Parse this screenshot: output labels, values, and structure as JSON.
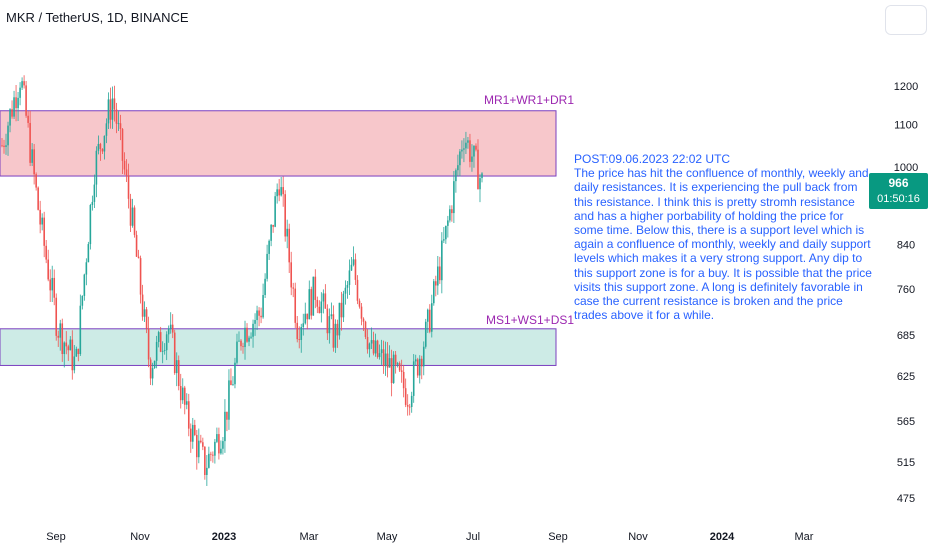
{
  "header": {
    "symbol": "MKR / TetherUS, 1D, BINANCE"
  },
  "colors": {
    "up": "#26a69a",
    "down": "#ef5350",
    "resistance_fill": "#f7c7cb",
    "support_fill": "#cdebe6",
    "zone_border": "#7b3fbf",
    "annotation_text": "#2962ff",
    "price_tag": "#089981",
    "axis_text": "#131722"
  },
  "price_tag": {
    "price": "966",
    "countdown": "01:50:16"
  },
  "annotation": "POST:09.06.2023 22:02 UTC\nThe price has hit the confluence of monthly, weekly and daily resistances. It is experiencing the pull back from this resistance. I think this is pretty stromh resistance and has a higher porbability of holding the price for some time. Below this, there is a support level which is again a confluence of monthly, weekly and daily support levels which makes it a very strong support. Any dip to this support zone is for a buy. It is possible that the price visits this support zone. A long is definitely favorable in case the current resistance is broken and the price trades above it for a while.",
  "chart_data": {
    "type": "candlestick",
    "y_scale": "log",
    "y_ticks": [
      475,
      515,
      565,
      625,
      685,
      760,
      840,
      1000,
      1100,
      1200
    ],
    "x_ticks": [
      "Sep",
      "Nov",
      "2023",
      "Mar",
      "May",
      "Jul",
      "Sep",
      "Nov",
      "2024",
      "Mar"
    ],
    "resistance_zone": {
      "label": "MR1+WR1+DR1",
      "low": 980,
      "high": 1135
    },
    "support_zone": {
      "label": "MS1+WS1+DS1",
      "low": 640,
      "high": 695
    },
    "last_price": 966,
    "series": [
      {
        "date": "Aug",
        "close": 1050
      },
      {
        "date": "mid-Aug",
        "close": 1230
      },
      {
        "date": "late-Aug",
        "close": 900
      },
      {
        "date": "Sep",
        "close": 700
      },
      {
        "date": "mid-Sep",
        "close": 640
      },
      {
        "date": "early-Oct",
        "close": 1000
      },
      {
        "date": "Oct",
        "close": 1170
      },
      {
        "date": "late-Oct",
        "close": 900
      },
      {
        "date": "Nov",
        "close": 640
      },
      {
        "date": "mid-Nov",
        "close": 700
      },
      {
        "date": "Dec",
        "close": 570
      },
      {
        "date": "late-Dec",
        "close": 510
      },
      {
        "date": "2023",
        "close": 560
      },
      {
        "date": "Jan",
        "close": 690
      },
      {
        "date": "Feb",
        "close": 720
      },
      {
        "date": "late-Feb",
        "close": 980
      },
      {
        "date": "Mar",
        "close": 700
      },
      {
        "date": "mid-Mar",
        "close": 760
      },
      {
        "date": "Apr",
        "close": 680
      },
      {
        "date": "mid-Apr",
        "close": 800
      },
      {
        "date": "May",
        "close": 660
      },
      {
        "date": "mid-May",
        "close": 640
      },
      {
        "date": "Jun",
        "close": 600
      },
      {
        "date": "mid-Jun",
        "close": 690
      },
      {
        "date": "late-Jun",
        "close": 850
      },
      {
        "date": "Jul",
        "close": 1080
      },
      {
        "date": "Jul-now",
        "close": 966
      }
    ]
  }
}
